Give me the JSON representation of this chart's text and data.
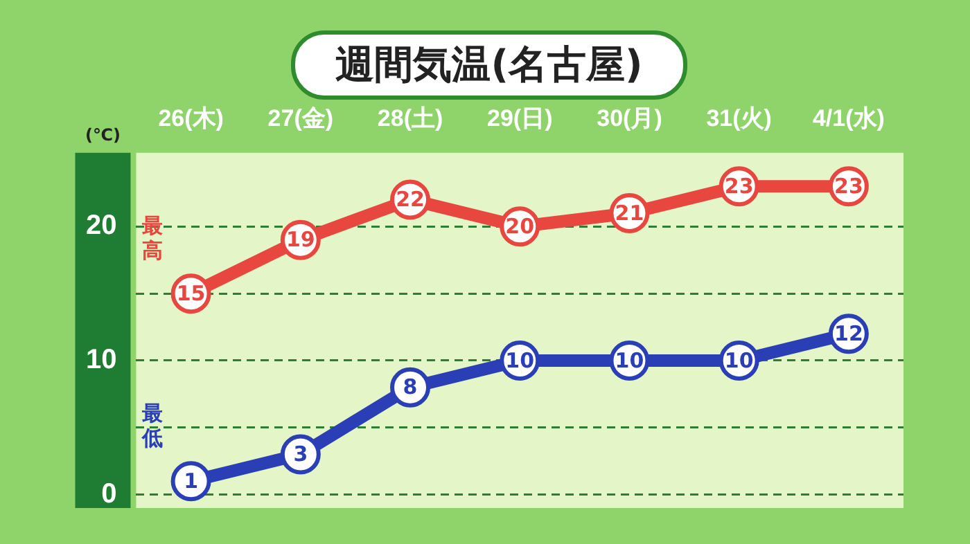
{
  "chart_data": {
    "type": "line",
    "title": "週間気温(名古屋)",
    "ylabel": "(℃)",
    "categories": [
      "26(木)",
      "27(金)",
      "28(土)",
      "29(日)",
      "30(月)",
      "31(火)",
      "4/1(水)"
    ],
    "series": [
      {
        "name": "最高",
        "color": "#e8473f",
        "values": [
          15,
          19,
          22,
          20,
          21,
          23,
          23
        ]
      },
      {
        "name": "最低",
        "color": "#2a3fb5",
        "values": [
          1,
          3,
          8,
          10,
          10,
          10,
          12
        ]
      }
    ],
    "ylim": [
      -1,
      25.5
    ],
    "yticks": [
      0,
      {
        "value": 5,
        "label": null
      },
      10,
      {
        "value": 15,
        "label": null
      },
      20
    ],
    "grid": "y",
    "marker": "circle",
    "line_style": "solid",
    "data_labels": true
  }
}
